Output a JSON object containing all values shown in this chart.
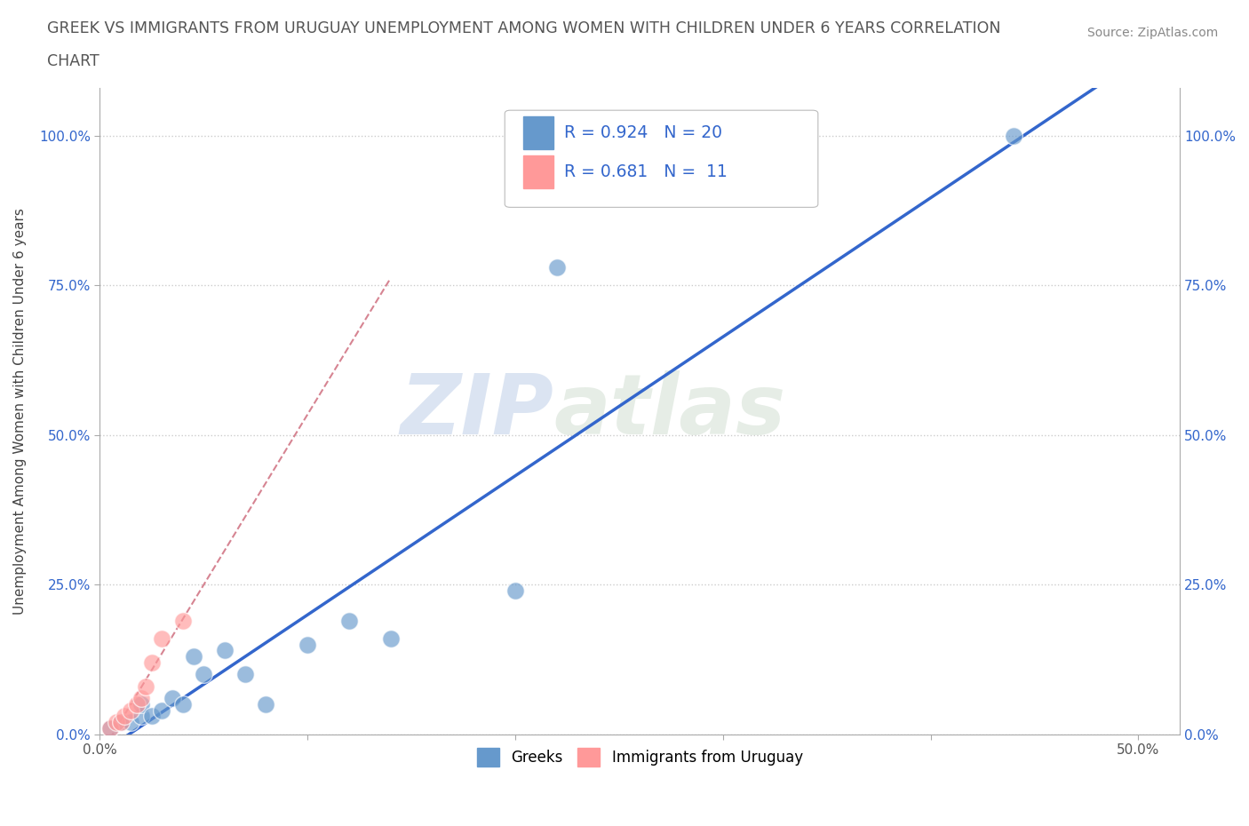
{
  "title_line1": "GREEK VS IMMIGRANTS FROM URUGUAY UNEMPLOYMENT AMONG WOMEN WITH CHILDREN UNDER 6 YEARS CORRELATION",
  "title_line2": "CHART",
  "source": "Source: ZipAtlas.com",
  "ylabel": "Unemployment Among Women with Children Under 6 years",
  "xlabel": "",
  "xlim": [
    0,
    0.52
  ],
  "ylim": [
    0,
    1.08
  ],
  "x_ticks": [
    0.0,
    0.1,
    0.2,
    0.3,
    0.4,
    0.5
  ],
  "x_tick_labels": [
    "0.0%",
    "",
    "",
    "",
    "",
    "50.0%"
  ],
  "y_tick_labels": [
    "0.0%",
    "25.0%",
    "50.0%",
    "75.0%",
    "100.0%"
  ],
  "y_ticks": [
    0.0,
    0.25,
    0.5,
    0.75,
    1.0
  ],
  "greeks_x": [
    0.005,
    0.01,
    0.015,
    0.02,
    0.02,
    0.025,
    0.03,
    0.035,
    0.04,
    0.045,
    0.05,
    0.06,
    0.07,
    0.08,
    0.1,
    0.12,
    0.14,
    0.2,
    0.22,
    0.44
  ],
  "greeks_y": [
    0.01,
    0.02,
    0.02,
    0.03,
    0.05,
    0.03,
    0.04,
    0.06,
    0.05,
    0.13,
    0.1,
    0.14,
    0.1,
    0.05,
    0.15,
    0.19,
    0.16,
    0.24,
    0.78,
    1.0
  ],
  "uruguay_x": [
    0.005,
    0.008,
    0.01,
    0.012,
    0.015,
    0.018,
    0.02,
    0.022,
    0.025,
    0.03,
    0.04
  ],
  "uruguay_y": [
    0.01,
    0.02,
    0.02,
    0.03,
    0.04,
    0.05,
    0.06,
    0.08,
    0.12,
    0.16,
    0.19
  ],
  "R_greeks": 0.924,
  "N_greeks": 20,
  "R_uruguay": 0.681,
  "N_uruguay": 11,
  "blue_color": "#6699CC",
  "pink_color": "#FF9999",
  "blue_line_color": "#3366CC",
  "pink_line_color": "#CC6677",
  "watermark_zip": "ZIP",
  "watermark_atlas": "atlas",
  "background_color": "#FFFFFF",
  "grid_color": "#CCCCCC"
}
